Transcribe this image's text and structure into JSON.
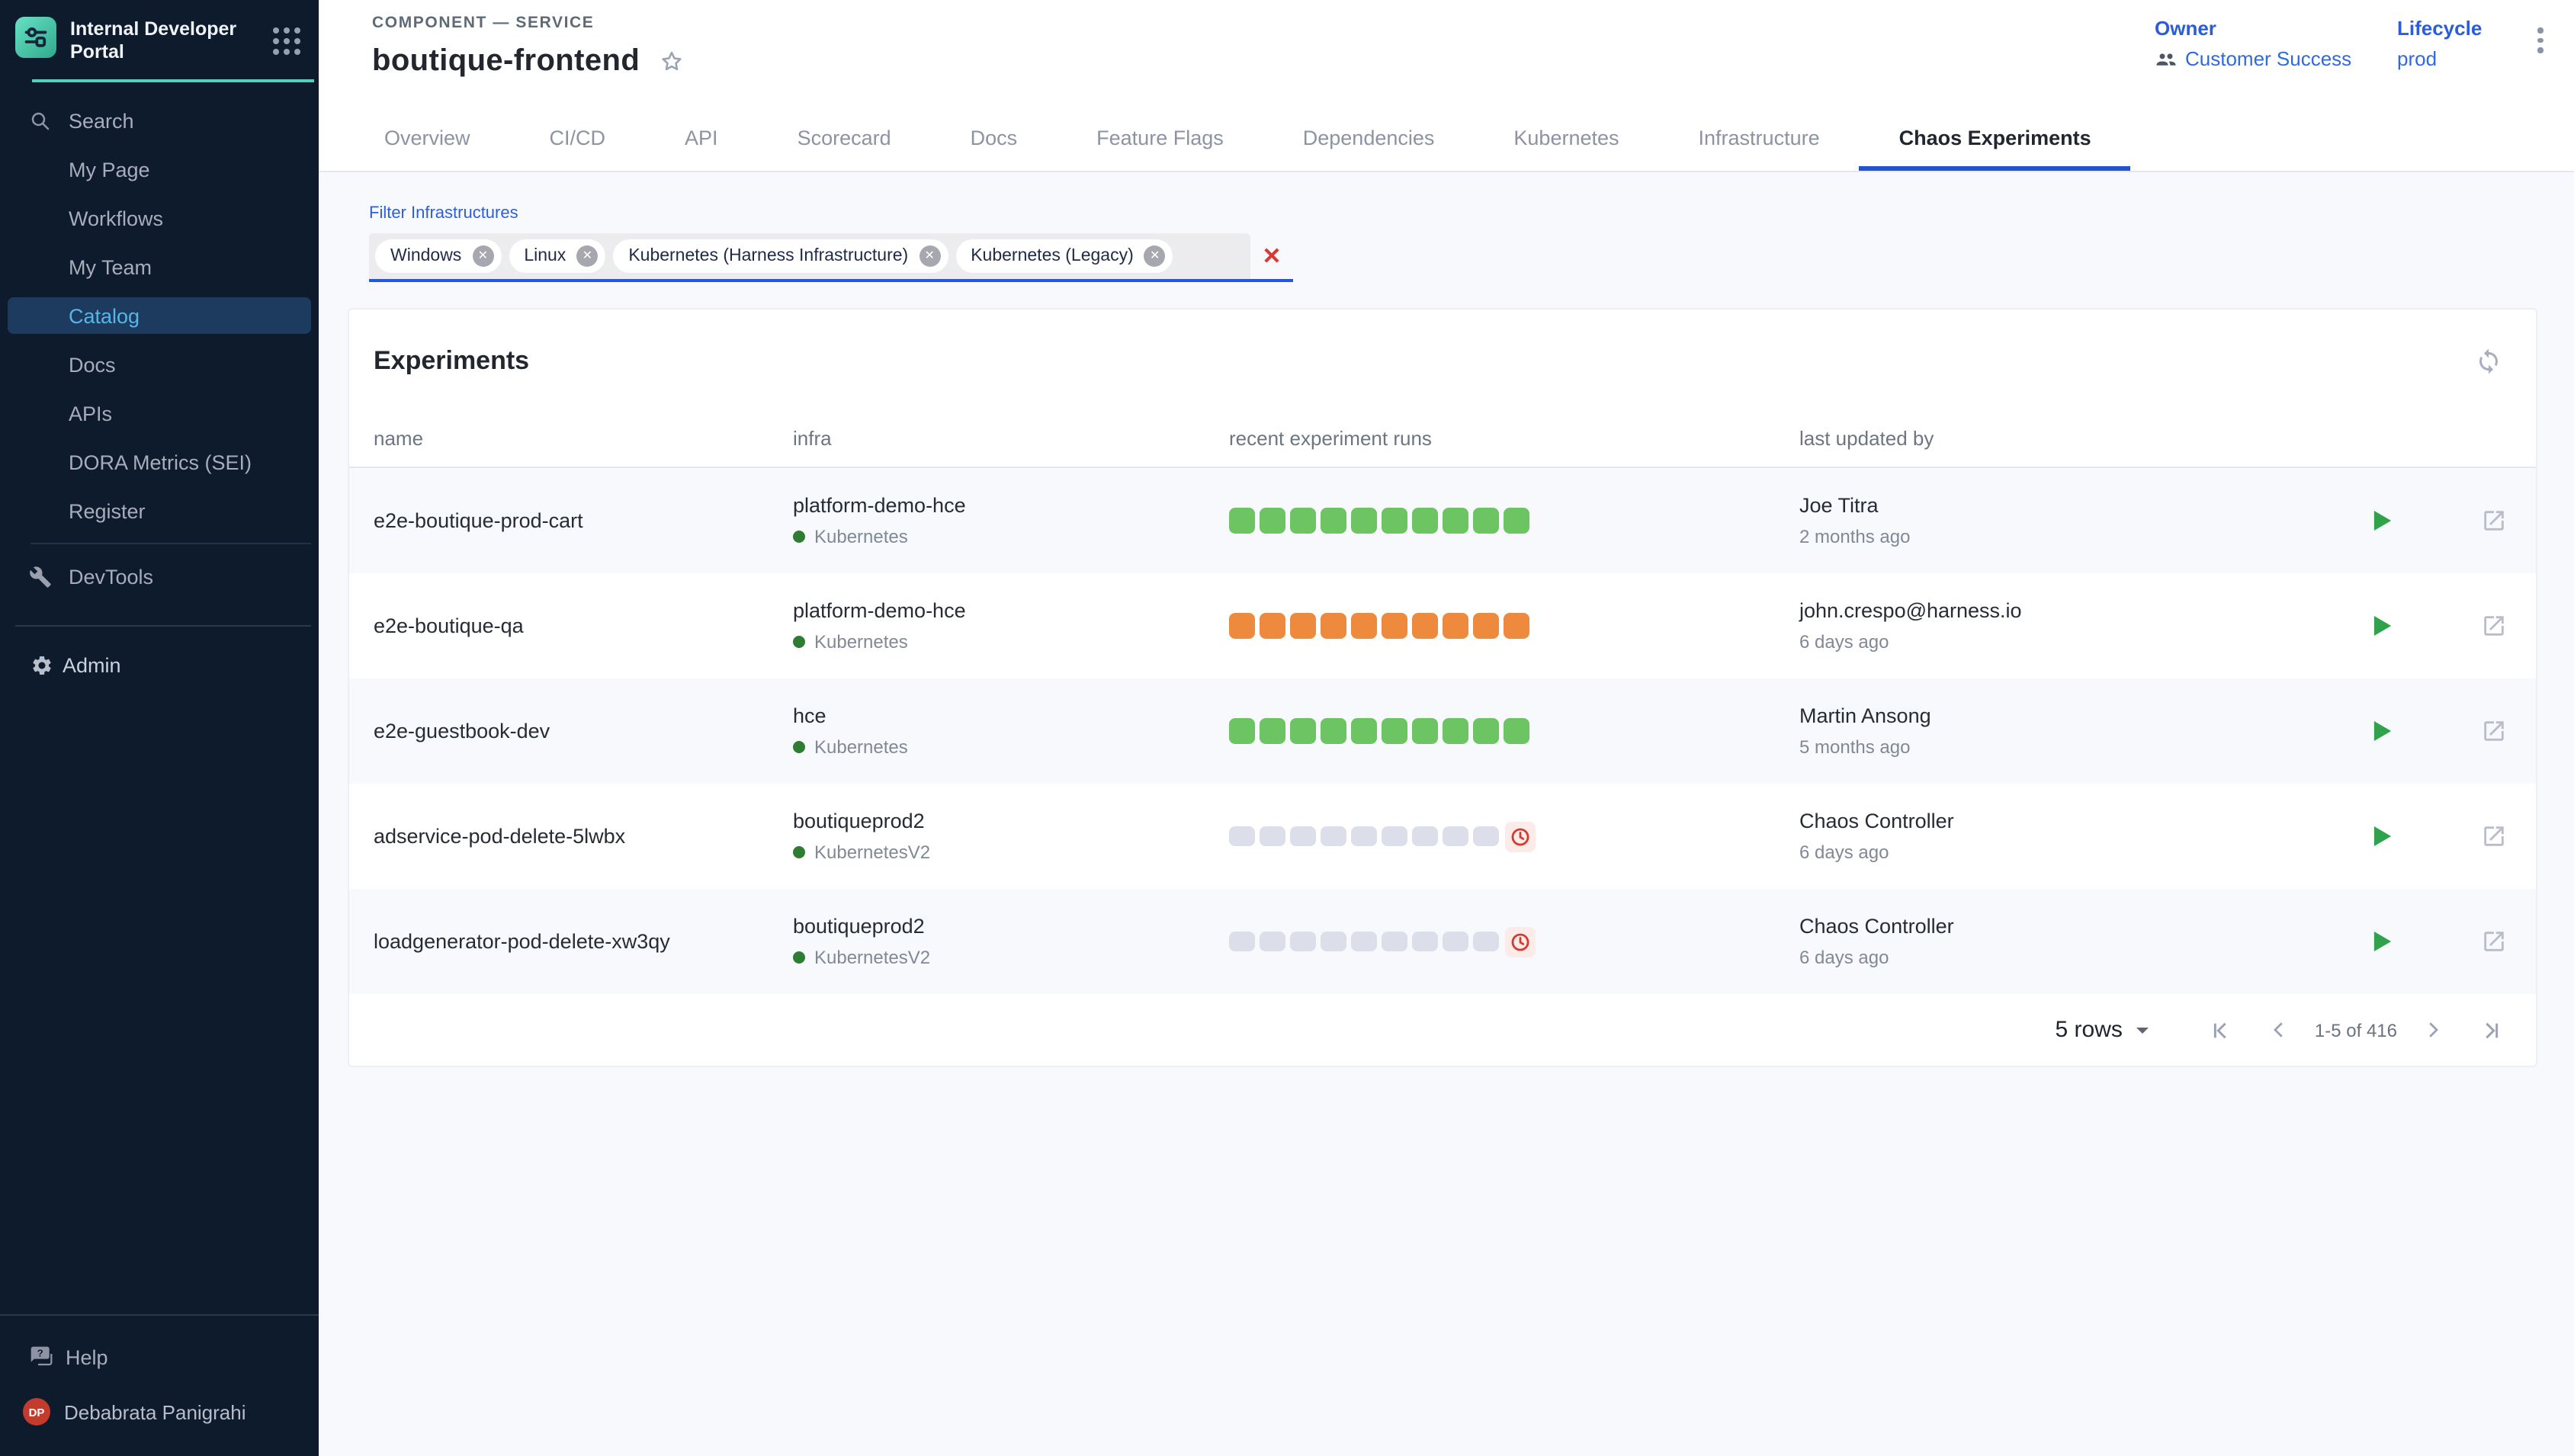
{
  "sidebar": {
    "title": "Internal Developer Portal",
    "items": [
      {
        "label": "Search",
        "icon": "search-icon"
      },
      {
        "label": "My Page"
      },
      {
        "label": "Workflows"
      },
      {
        "label": "My Team"
      },
      {
        "label": "Catalog",
        "selected": true
      },
      {
        "label": "Docs"
      },
      {
        "label": "APIs"
      },
      {
        "label": "DORA Metrics (SEI)"
      },
      {
        "label": "Register"
      }
    ],
    "devtools_label": "DevTools",
    "admin_label": "Admin",
    "help_label": "Help",
    "user": {
      "initials": "DP",
      "name": "Debabrata Panigrahi"
    }
  },
  "header": {
    "kind": "COMPONENT — SERVICE",
    "title": "boutique-frontend",
    "owner_label": "Owner",
    "owner_value": "Customer Success",
    "lifecycle_label": "Lifecycle",
    "lifecycle_value": "prod"
  },
  "tabs": {
    "items": [
      "Overview",
      "CI/CD",
      "API",
      "Scorecard",
      "Docs",
      "Feature Flags",
      "Dependencies",
      "Kubernetes",
      "Infrastructure",
      "Chaos Experiments"
    ],
    "active": "Chaos Experiments"
  },
  "filter": {
    "label": "Filter Infrastructures",
    "chips": [
      "Windows",
      "Linux",
      "Kubernetes (Harness Infrastructure)",
      "Kubernetes (Legacy)"
    ]
  },
  "experiments": {
    "title": "Experiments",
    "columns": [
      "name",
      "infra",
      "recent experiment runs",
      "last updated by"
    ],
    "rows": [
      {
        "name": "e2e-boutique-prod-cart",
        "infra": "platform-demo-hce",
        "infra_type": "Kubernetes",
        "runs": {
          "color": "green",
          "count": 10,
          "overdue": false
        },
        "updated_by": "Joe Titra",
        "updated_ago": "2 months ago"
      },
      {
        "name": "e2e-boutique-qa",
        "infra": "platform-demo-hce",
        "infra_type": "Kubernetes",
        "runs": {
          "color": "orange",
          "count": 10,
          "overdue": false
        },
        "updated_by": "john.crespo@harness.io",
        "updated_ago": "6 days ago"
      },
      {
        "name": "e2e-guestbook-dev",
        "infra": "hce",
        "infra_type": "Kubernetes",
        "runs": {
          "color": "green",
          "count": 10,
          "overdue": false
        },
        "updated_by": "Martin Ansong",
        "updated_ago": "5 months ago"
      },
      {
        "name": "adservice-pod-delete-5lwbx",
        "infra": "boutiqueprod2",
        "infra_type": "KubernetesV2",
        "runs": {
          "color": "grey",
          "count": 9,
          "overdue": true
        },
        "updated_by": "Chaos Controller",
        "updated_ago": "6 days ago"
      },
      {
        "name": "loadgenerator-pod-delete-xw3qy",
        "infra": "boutiqueprod2",
        "infra_type": "KubernetesV2",
        "runs": {
          "color": "grey",
          "count": 9,
          "overdue": true
        },
        "updated_by": "Chaos Controller",
        "updated_ago": "6 days ago"
      }
    ],
    "pagination": {
      "rows_label": "5 rows",
      "range": "1-5 of 416"
    }
  },
  "colors": {
    "sidebar_bg": "#0e1b2d",
    "sidebar_selected_bg": "#1d3a5f",
    "sidebar_selected_text": "#57b6e5",
    "teal_accent": "#4fd2be",
    "tab_underline": "#2152d0",
    "link_blue": "#2f6ae0",
    "filter_underline": "#2457e6",
    "run_green": "#6cc462",
    "run_orange": "#ee8a3e",
    "run_grey": "#dcdfe9",
    "overdue_red": "#d63a2f",
    "play_green": "#31a24c",
    "avatar_red": "#c23b2c",
    "status_dot_green": "#2e7d32"
  }
}
